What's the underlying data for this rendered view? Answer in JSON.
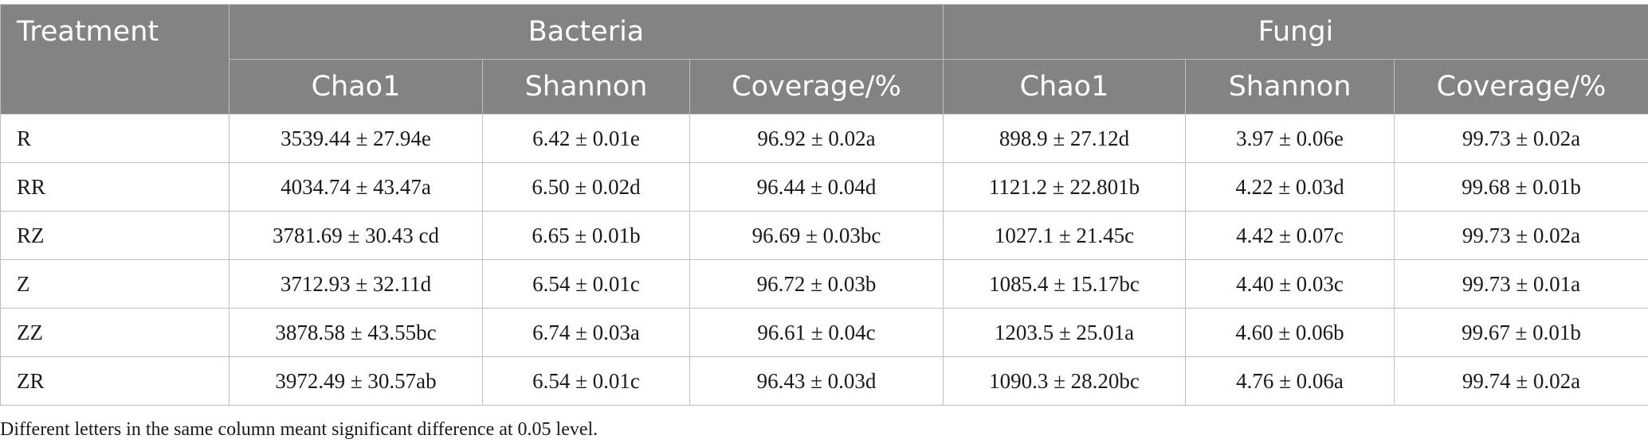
{
  "table": {
    "header_first": "Treatment",
    "groups": [
      "Bacteria",
      "Fungi"
    ],
    "subheaders": [
      "Chao1",
      "Shannon",
      "Coverage/%",
      "Chao1",
      "Shannon",
      "Coverage/%"
    ],
    "rows": [
      [
        "R",
        "3539.44 ± 27.94e",
        "6.42 ± 0.01e",
        "96.92 ± 0.02a",
        "898.9 ± 27.12d",
        "3.97 ± 0.06e",
        "99.73 ± 0.02a"
      ],
      [
        "RR",
        "4034.74 ± 43.47a",
        "6.50 ± 0.02d",
        "96.44 ± 0.04d",
        "1121.2 ± 22.801b",
        "4.22 ± 0.03d",
        "99.68 ± 0.01b"
      ],
      [
        "RZ",
        "3781.69 ± 30.43 cd",
        "6.65 ± 0.01b",
        "96.69 ± 0.03bc",
        "1027.1 ± 21.45c",
        "4.42 ± 0.07c",
        "99.73 ± 0.02a"
      ],
      [
        "Z",
        "3712.93 ± 32.11d",
        "6.54 ± 0.01c",
        "96.72 ± 0.03b",
        "1085.4 ± 15.17bc",
        "4.40 ± 0.03c",
        "99.73 ± 0.01a"
      ],
      [
        "ZZ",
        "3878.58 ± 43.55bc",
        "6.74 ± 0.03a",
        "96.61 ± 0.04c",
        "1203.5 ± 25.01a",
        "4.60 ± 0.06b",
        "99.67 ± 0.01b"
      ],
      [
        "ZR",
        "3972.49 ± 30.57ab",
        "6.54 ± 0.01c",
        "96.43 ± 0.03d",
        "1090.3 ± 28.20bc",
        "4.76 ± 0.06a",
        "99.74 ± 0.02a"
      ]
    ]
  },
  "footnote": "Different letters in the same column meant significant difference at 0.05 level.",
  "colors": {
    "header_bg": "#838383",
    "header_text": "#ffffff",
    "grid": "#bfbfbf"
  }
}
